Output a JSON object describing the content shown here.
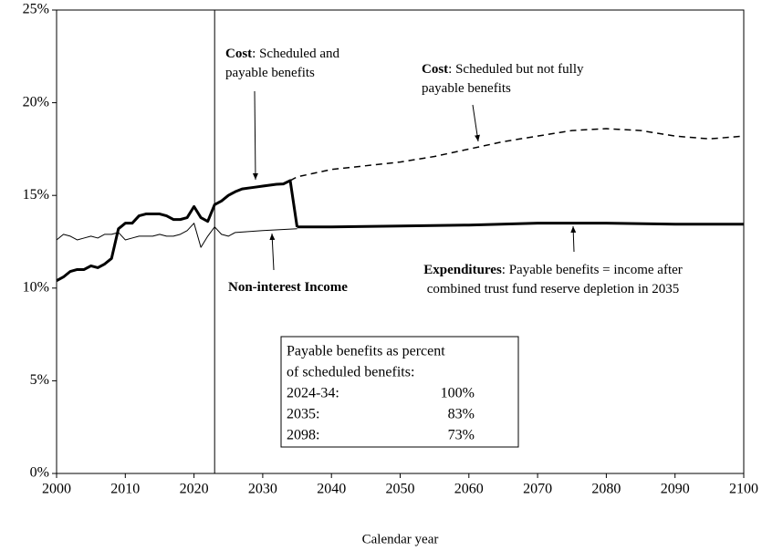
{
  "chart_data": {
    "type": "line",
    "xlabel": "Calendar year",
    "xlim": [
      2000,
      2100
    ],
    "xticks": [
      2000,
      2010,
      2020,
      2030,
      2040,
      2050,
      2060,
      2070,
      2080,
      2090,
      2100
    ],
    "ylim": [
      0,
      25
    ],
    "yticks": [
      {
        "value": 0,
        "label": "0%"
      },
      {
        "value": 5,
        "label": "5%"
      },
      {
        "value": 10,
        "label": "10%"
      },
      {
        "value": 15,
        "label": "15%"
      },
      {
        "value": 20,
        "label": "20%"
      },
      {
        "value": 25,
        "label": "25%"
      }
    ],
    "vline": 2023,
    "series": [
      {
        "color": "#000",
        "width": 3,
        "dash": false,
        "x": [
          2000,
          2001,
          2002,
          2003,
          2004,
          2005,
          2006,
          2007,
          2008,
          2009,
          2010,
          2011,
          2012,
          2013,
          2014,
          2015,
          2016,
          2017,
          2018,
          2019,
          2020,
          2021,
          2022,
          2023,
          2024,
          2025,
          2026,
          2027,
          2028,
          2029,
          2030,
          2031,
          2032,
          2033,
          2034,
          2035
        ],
        "values": [
          10.4,
          10.6,
          10.9,
          11.0,
          11.0,
          11.2,
          11.1,
          11.3,
          11.6,
          13.2,
          13.5,
          13.5,
          13.9,
          14.0,
          14.0,
          14.0,
          13.9,
          13.7,
          13.7,
          13.8,
          14.4,
          13.8,
          13.6,
          14.5,
          14.7,
          15.0,
          15.2,
          15.35,
          15.4,
          15.45,
          15.5,
          15.55,
          15.6,
          15.62,
          15.8,
          13.3
        ]
      },
      {
        "color": "#000",
        "width": 1.5,
        "dash": true,
        "x": [
          2034,
          2035,
          2040,
          2045,
          2050,
          2055,
          2060,
          2065,
          2070,
          2075,
          2080,
          2085,
          2090,
          2095,
          2100
        ],
        "values": [
          15.8,
          16.0,
          16.4,
          16.6,
          16.8,
          17.1,
          17.5,
          17.9,
          18.2,
          18.5,
          18.6,
          18.5,
          18.2,
          18.05,
          18.2
        ]
      },
      {
        "color": "#000",
        "width": 3,
        "dash": false,
        "x": [
          2035,
          2040,
          2050,
          2060,
          2070,
          2080,
          2090,
          2100
        ],
        "values": [
          13.3,
          13.3,
          13.35,
          13.4,
          13.5,
          13.5,
          13.45,
          13.45
        ]
      },
      {
        "color": "#000",
        "width": 1,
        "dash": false,
        "x": [
          2000,
          2001,
          2002,
          2003,
          2004,
          2005,
          2006,
          2007,
          2008,
          2009,
          2010,
          2011,
          2012,
          2013,
          2014,
          2015,
          2016,
          2017,
          2018,
          2019,
          2020,
          2021,
          2022,
          2023,
          2024,
          2025,
          2026,
          2030,
          2035
        ],
        "values": [
          12.6,
          12.9,
          12.8,
          12.6,
          12.7,
          12.8,
          12.7,
          12.9,
          12.9,
          13.0,
          12.6,
          12.7,
          12.8,
          12.8,
          12.8,
          12.9,
          12.8,
          12.8,
          12.9,
          13.1,
          13.5,
          12.2,
          12.8,
          13.3,
          12.9,
          12.8,
          13.0,
          13.1,
          13.2
        ]
      }
    ],
    "annotations": [
      {
        "lines": [
          [
            "Cost",
            ": Scheduled and"
          ],
          [
            "payable benefits"
          ]
        ]
      },
      {
        "lines": [
          [
            "Cost",
            ": Scheduled but not fully"
          ],
          [
            "payable benefits"
          ]
        ]
      },
      {
        "lines": [
          [
            "Non-interest Income"
          ]
        ]
      },
      {
        "lines": [
          [
            "Expenditures",
            ": Payable benefits = income after"
          ],
          [
            "combined trust fund reserve depletion in 2035"
          ]
        ]
      }
    ],
    "box": {
      "heading": [
        "Payable benefits as percent",
        "of scheduled benefits:"
      ],
      "rows": [
        [
          "2024-34:",
          "100%"
        ],
        [
          "2035:",
          "83%"
        ],
        [
          "2098:",
          "73%"
        ]
      ]
    }
  }
}
